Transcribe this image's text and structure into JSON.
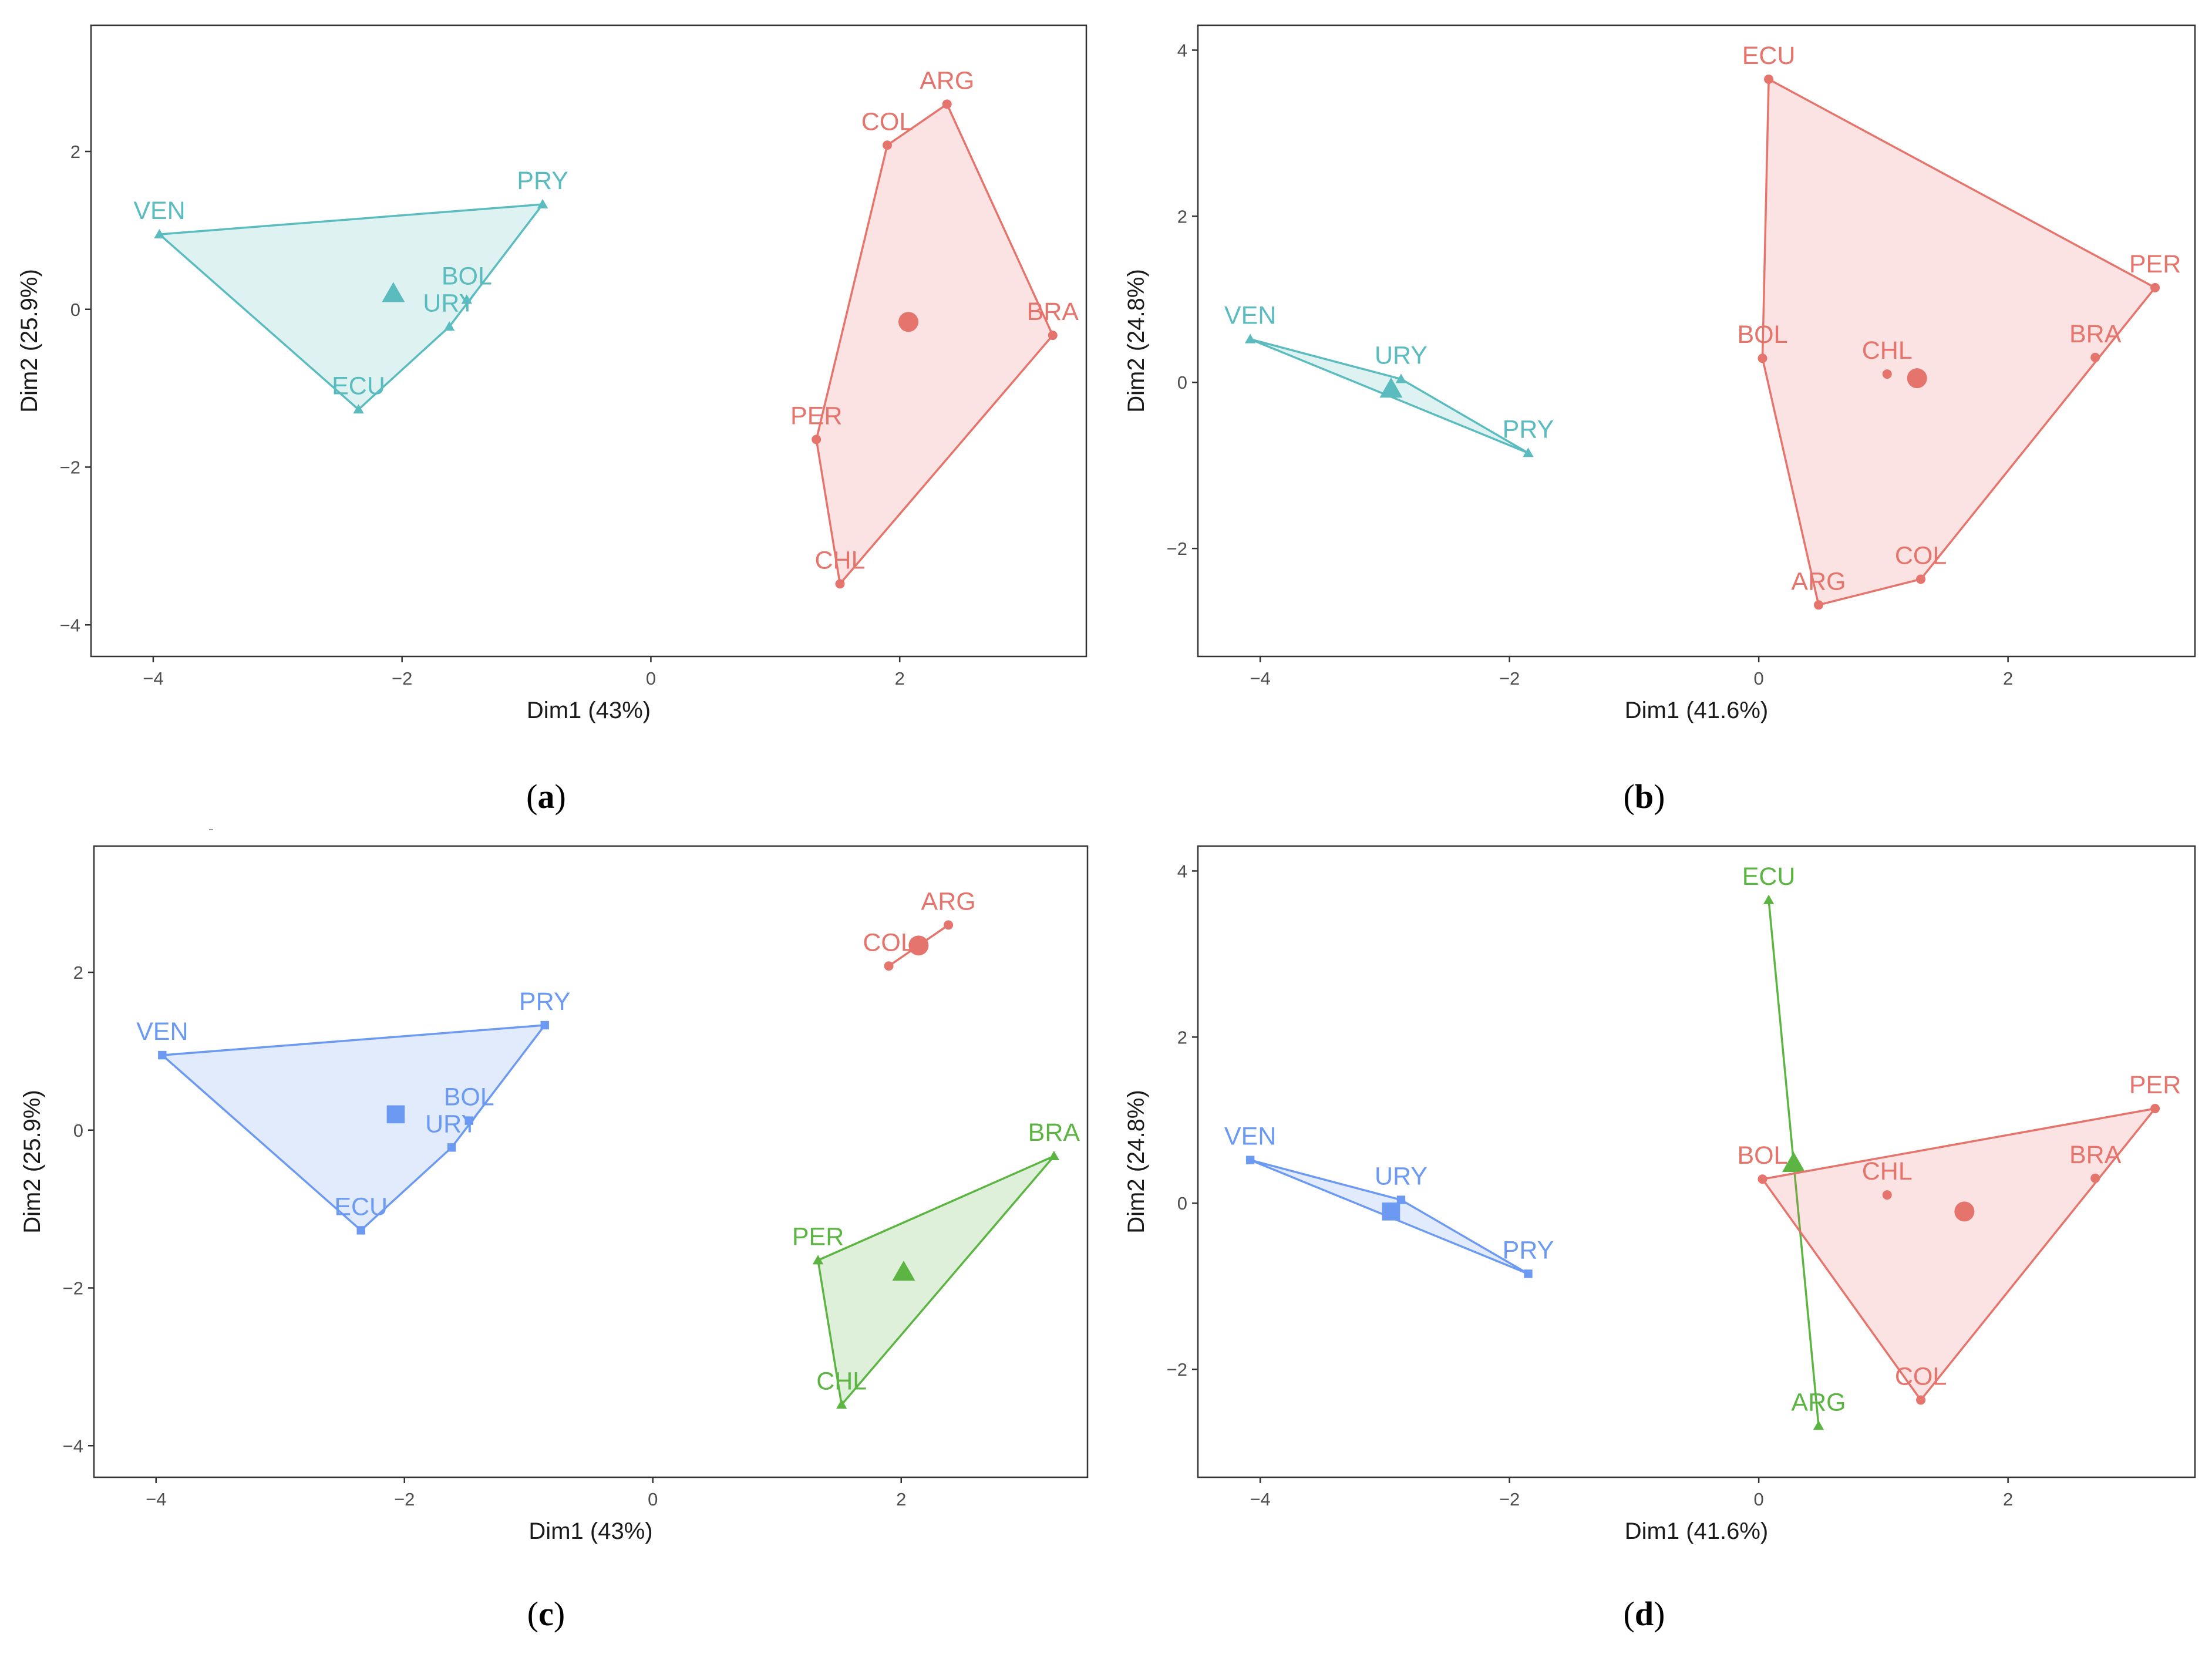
{
  "chart_data": [
    {
      "type": "scatter",
      "panel": "(a)",
      "xlabel": "Dim1 (43%)",
      "ylabel": "Dim2 (25.9%)",
      "xlim": [
        -4.5,
        3.5
      ],
      "ylim": [
        -4.4,
        3.6
      ],
      "xticks": [
        -4,
        -2,
        0,
        2
      ],
      "yticks": [
        -4,
        -2,
        0,
        2
      ],
      "grid": false,
      "groups": [
        {
          "color": "#5BBCBF",
          "marker": "triangle",
          "points": [
            {
              "label": "VEN",
              "x": -3.95,
              "y": 0.95
            },
            {
              "label": "PRY",
              "x": -0.87,
              "y": 1.33
            },
            {
              "label": "BOL",
              "x": -1.48,
              "y": 0.12
            },
            {
              "label": "URY",
              "x": -1.62,
              "y": -0.22
            },
            {
              "label": "ECU",
              "x": -2.35,
              "y": -1.27
            }
          ],
          "hull": [
            "VEN",
            "PRY",
            "URY",
            "ECU"
          ],
          "centroid": {
            "x": -2.07,
            "y": 0.2
          }
        },
        {
          "color": "#E5746C",
          "marker": "circle",
          "points": [
            {
              "label": "ARG",
              "x": 2.38,
              "y": 2.6
            },
            {
              "label": "COL",
              "x": 1.9,
              "y": 2.08
            },
            {
              "label": "BRA",
              "x": 3.23,
              "y": -0.33
            },
            {
              "label": "PER",
              "x": 1.33,
              "y": -1.65
            },
            {
              "label": "CHL",
              "x": 1.52,
              "y": -3.48
            }
          ],
          "hull": [
            "ARG",
            "COL",
            "PER",
            "CHL",
            "BRA"
          ],
          "centroid": {
            "x": 2.07,
            "y": -0.16
          }
        }
      ]
    },
    {
      "type": "scatter",
      "panel": "(b)",
      "xlabel": "Dim1 (41.6%)",
      "ylabel": "Dim2 (24.8%)",
      "xlim": [
        -4.5,
        3.5
      ],
      "ylim": [
        -3.3,
        4.3
      ],
      "xticks": [
        -4,
        -2,
        0,
        2
      ],
      "yticks": [
        -2,
        0,
        2,
        4
      ],
      "grid": false,
      "groups": [
        {
          "color": "#5BBCBF",
          "marker": "triangle",
          "points": [
            {
              "label": "VEN",
              "x": -4.08,
              "y": 0.52
            },
            {
              "label": "URY",
              "x": -2.87,
              "y": 0.04
            },
            {
              "label": "PRY",
              "x": -1.85,
              "y": -0.85
            }
          ],
          "hull": [
            "VEN",
            "URY",
            "PRY"
          ],
          "centroid": {
            "x": -2.95,
            "y": -0.08
          }
        },
        {
          "color": "#E5746C",
          "marker": "circle",
          "points": [
            {
              "label": "ECU",
              "x": 0.08,
              "y": 3.65
            },
            {
              "label": "PER",
              "x": 3.18,
              "y": 1.14
            },
            {
              "label": "BOL",
              "x": 0.03,
              "y": 0.29
            },
            {
              "label": "CHL",
              "x": 1.03,
              "y": 0.1
            },
            {
              "label": "BRA",
              "x": 2.7,
              "y": 0.3
            },
            {
              "label": "COL",
              "x": 1.3,
              "y": -2.37
            },
            {
              "label": "ARG",
              "x": 0.48,
              "y": -2.68
            }
          ],
          "hull": [
            "ECU",
            "PER",
            "COL",
            "ARG",
            "BOL"
          ],
          "centroid": {
            "x": 1.27,
            "y": 0.05
          }
        }
      ]
    },
    {
      "type": "scatter",
      "panel": "(c)",
      "xlabel": "Dim1 (43%)",
      "ylabel": "Dim2 (25.9%)",
      "xlim": [
        -4.5,
        3.5
      ],
      "ylim": [
        -4.4,
        3.6
      ],
      "xticks": [
        -4,
        -2,
        0,
        2
      ],
      "yticks": [
        -4,
        -2,
        0,
        2
      ],
      "grid": false,
      "groups": [
        {
          "color": "#E5746C",
          "marker": "circle",
          "points": [
            {
              "label": "ARG",
              "x": 2.38,
              "y": 2.6
            },
            {
              "label": "COL",
              "x": 1.9,
              "y": 2.08
            }
          ],
          "hull": [
            "ARG",
            "COL"
          ],
          "centroid": {
            "x": 2.14,
            "y": 2.34
          }
        },
        {
          "color": "#6C9AF2",
          "marker": "square",
          "points": [
            {
              "label": "VEN",
              "x": -3.95,
              "y": 0.95
            },
            {
              "label": "PRY",
              "x": -0.87,
              "y": 1.33
            },
            {
              "label": "BOL",
              "x": -1.48,
              "y": 0.12
            },
            {
              "label": "URY",
              "x": -1.62,
              "y": -0.22
            },
            {
              "label": "ECU",
              "x": -2.35,
              "y": -1.27
            }
          ],
          "hull": [
            "VEN",
            "PRY",
            "URY",
            "ECU"
          ],
          "centroid": {
            "x": -2.07,
            "y": 0.2
          }
        },
        {
          "color": "#5CB543",
          "marker": "triangle",
          "points": [
            {
              "label": "BRA",
              "x": 3.23,
              "y": -0.33
            },
            {
              "label": "PER",
              "x": 1.33,
              "y": -1.65
            },
            {
              "label": "CHL",
              "x": 1.52,
              "y": -3.48
            }
          ],
          "hull": [
            "BRA",
            "PER",
            "CHL"
          ],
          "centroid": {
            "x": 2.02,
            "y": -1.8
          }
        }
      ]
    },
    {
      "type": "scatter",
      "panel": "(d)",
      "xlabel": "Dim1 (41.6%)",
      "ylabel": "Dim2 (24.8%)",
      "xlim": [
        -4.5,
        3.5
      ],
      "ylim": [
        -3.3,
        4.3
      ],
      "xticks": [
        -4,
        -2,
        0,
        2
      ],
      "yticks": [
        -2,
        0,
        2,
        4
      ],
      "grid": false,
      "groups": [
        {
          "color": "#5CB543",
          "marker": "triangle",
          "points": [
            {
              "label": "ECU",
              "x": 0.08,
              "y": 3.65
            },
            {
              "label": "ARG",
              "x": 0.48,
              "y": -2.68
            }
          ],
          "hull": [
            "ECU",
            "ARG"
          ],
          "centroid": {
            "x": 0.28,
            "y": 0.48
          }
        },
        {
          "color": "#6C9AF2",
          "marker": "square",
          "points": [
            {
              "label": "VEN",
              "x": -4.08,
              "y": 0.52
            },
            {
              "label": "URY",
              "x": -2.87,
              "y": 0.04
            },
            {
              "label": "PRY",
              "x": -1.85,
              "y": -0.85
            }
          ],
          "hull": [
            "VEN",
            "URY",
            "PRY"
          ],
          "centroid": {
            "x": -2.95,
            "y": -0.1
          }
        },
        {
          "color": "#E5746C",
          "marker": "circle",
          "points": [
            {
              "label": "PER",
              "x": 3.18,
              "y": 1.14
            },
            {
              "label": "BOL",
              "x": 0.03,
              "y": 0.29
            },
            {
              "label": "CHL",
              "x": 1.03,
              "y": 0.1
            },
            {
              "label": "BRA",
              "x": 2.7,
              "y": 0.3
            },
            {
              "label": "COL",
              "x": 1.3,
              "y": -2.37
            }
          ],
          "hull": [
            "PER",
            "COL",
            "BOL"
          ],
          "centroid": {
            "x": 1.65,
            "y": -0.1
          }
        }
      ]
    }
  ]
}
